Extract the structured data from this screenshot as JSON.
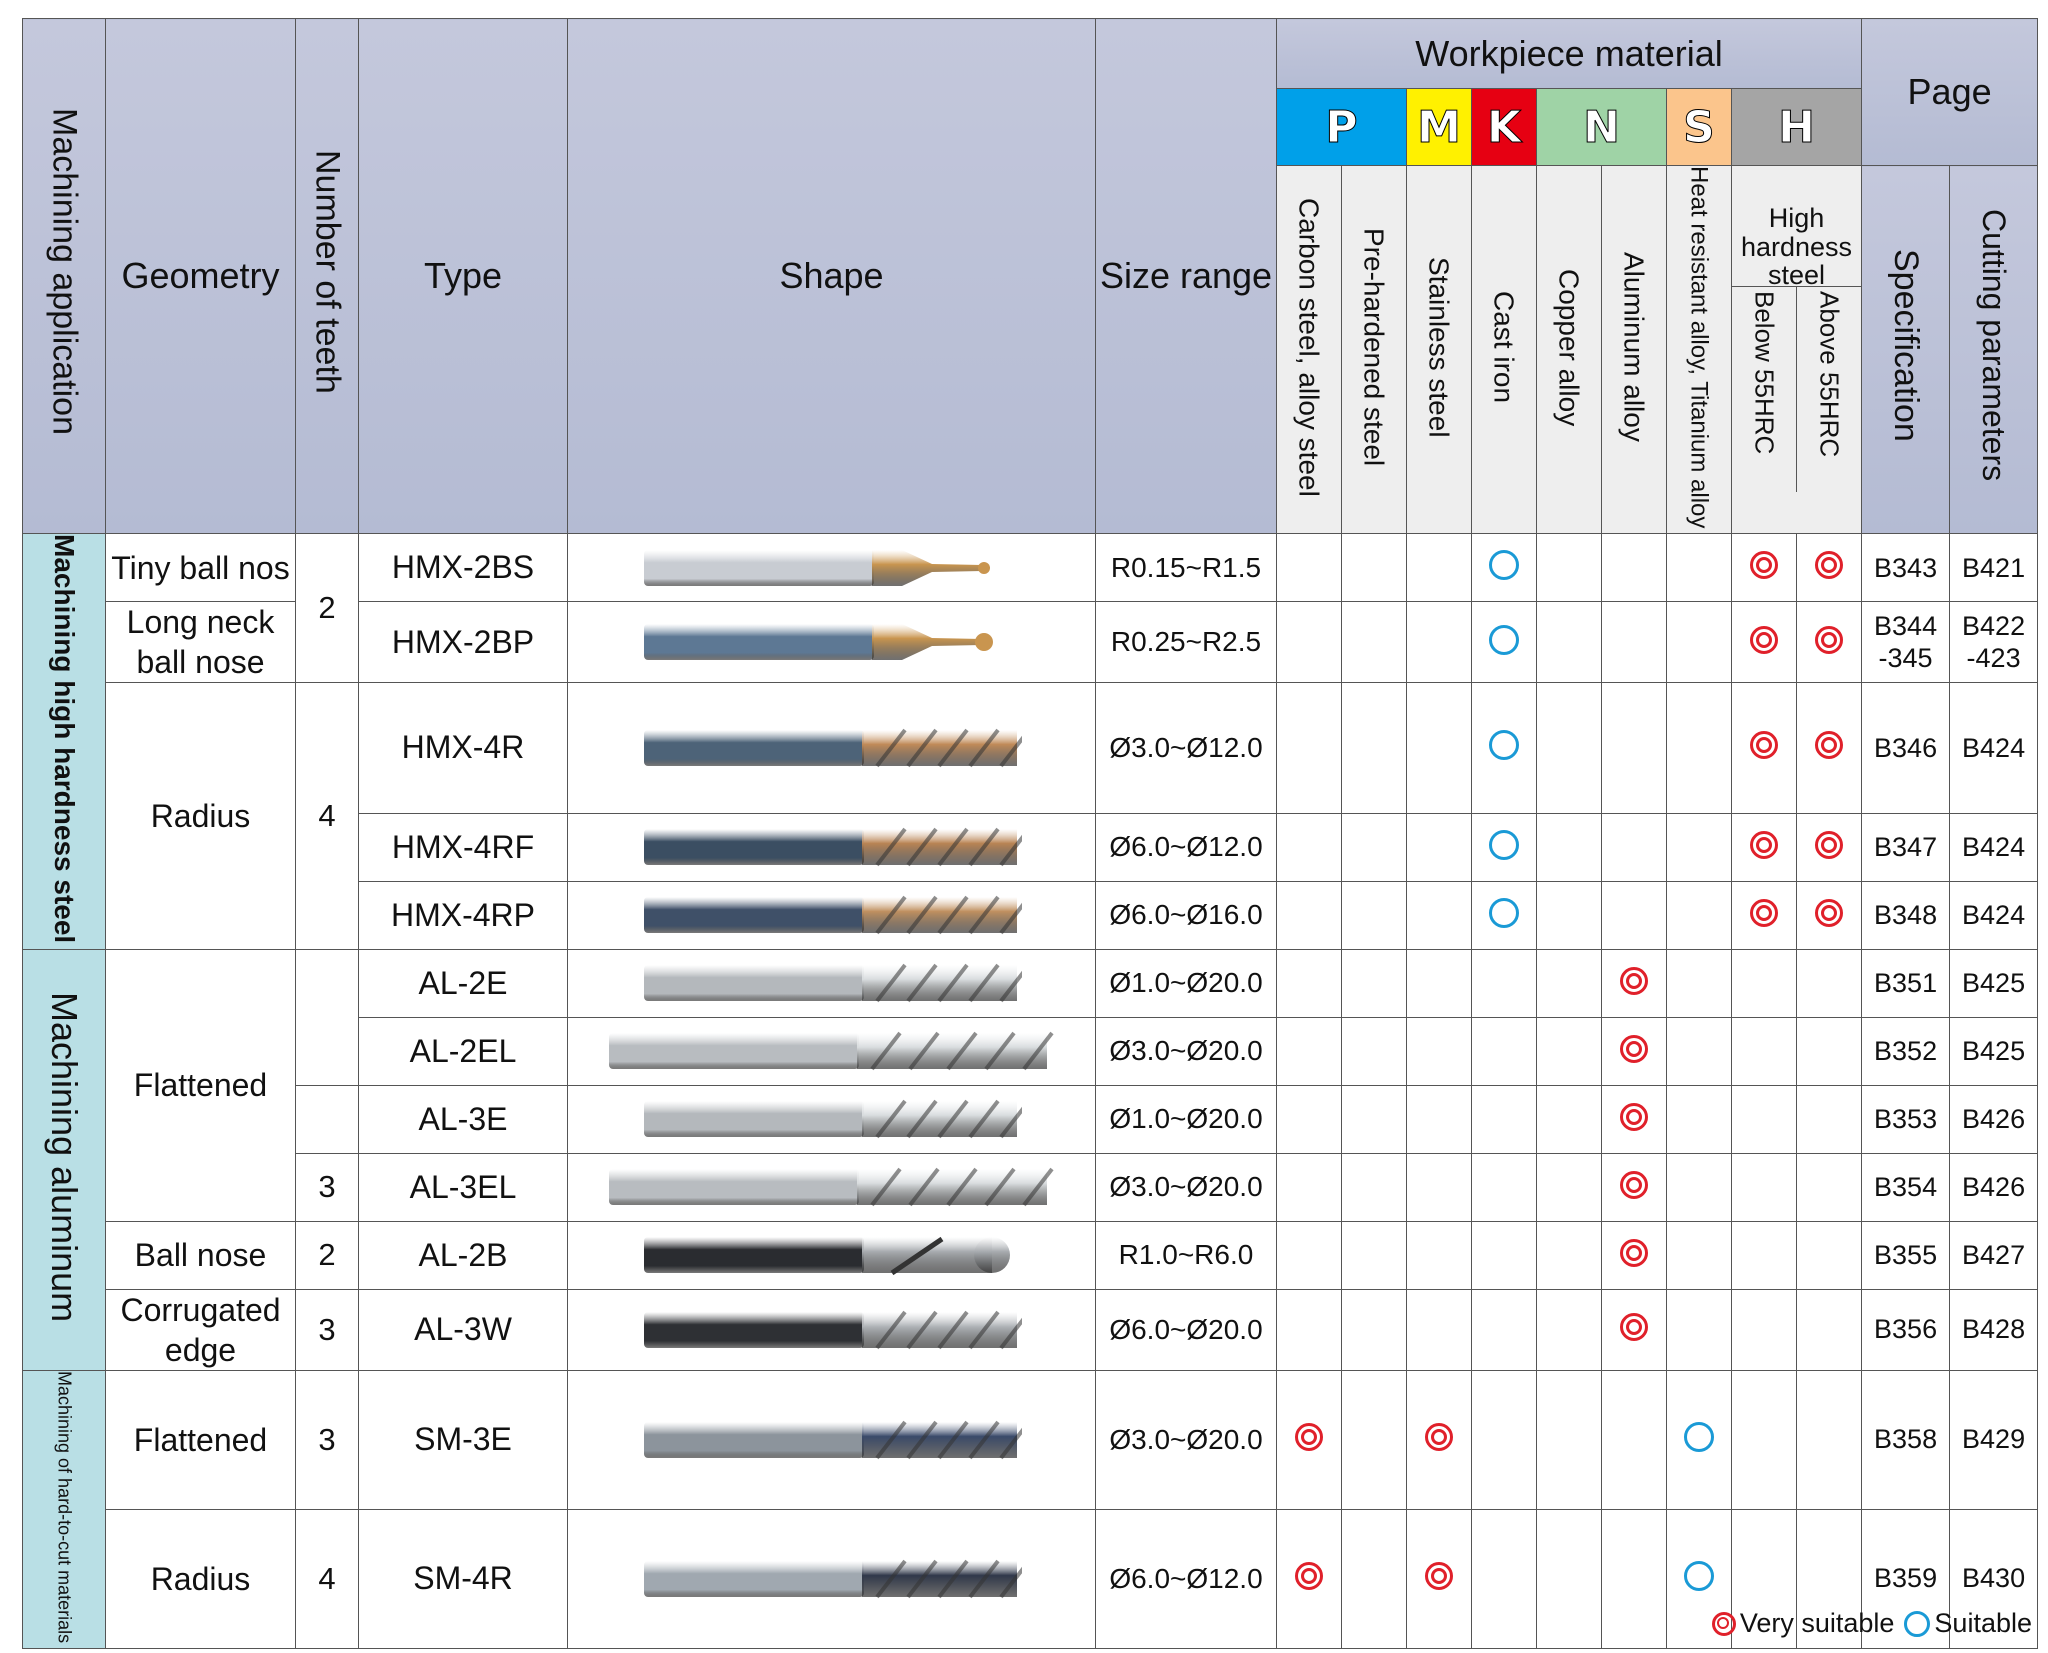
{
  "header": {
    "machining_application": "Machining application",
    "geometry": "Geometry",
    "number_of_teeth": "Number of teeth",
    "type": "Type",
    "shape": "Shape",
    "size_range": "Size range",
    "workpiece_material": "Workpiece material",
    "page": "Page",
    "iso": [
      {
        "letter": "P",
        "color": "#00a0e9"
      },
      {
        "letter": "M",
        "color": "#fff100"
      },
      {
        "letter": "K",
        "color": "#e60012"
      },
      {
        "letter": "N",
        "color": "#9fd3a6"
      },
      {
        "letter": "S",
        "color": "#fbc58c"
      },
      {
        "letter": "H",
        "color": "#a5a5a5"
      }
    ],
    "materials": {
      "carbon": "Carbon steel, alloy steel",
      "prehardened": "Pre-hardened steel",
      "stainless": "Stainless steel",
      "castiron": "Cast iron",
      "copper": "Copper alloy",
      "aluminum": "Aluminum  alloy",
      "heat": "Heat resistant alloy, Titanium alloy",
      "high_hardness": "High hardness steel",
      "below55": "Below 55HRC",
      "above55": "Above 55HRC"
    },
    "specification": "Specification",
    "cutting_parameters": "Cutting parameters"
  },
  "applications": {
    "high_hardness": "Machining high hardness steel",
    "aluminum": "Machining aluminum",
    "hard_to_cut": "Machining of hard-to-cut materials"
  },
  "geometry": {
    "tiny_ball": "Tiny ball nos",
    "long_neck": "Long neck ball nose",
    "radius": "Radius",
    "flattened": "Flattened",
    "ball_nose": "Ball nose",
    "corrugated": "Corrugated edge",
    "flattened2": "Flattened",
    "radius2": "Radius"
  },
  "teeth": {
    "t2a": "2",
    "t4a": "4",
    "t3a": "3",
    "t2b": "2",
    "t3b": "3",
    "t3c": "3",
    "t4b": "4"
  },
  "rows": [
    {
      "type": "HMX-2BS",
      "size": "R0.15~R1.5",
      "spec": "B343",
      "cut": "B421"
    },
    {
      "type": "HMX-2BP",
      "size": "R0.25~R2.5",
      "spec": "B344 -345",
      "cut": "B422 -423"
    },
    {
      "type": "HMX-4R",
      "size": "Ø3.0~Ø12.0",
      "spec": "B346",
      "cut": "B424"
    },
    {
      "type": "HMX-4RF",
      "size": "Ø6.0~Ø12.0",
      "spec": "B347",
      "cut": "B424"
    },
    {
      "type": "HMX-4RP",
      "size": "Ø6.0~Ø16.0",
      "spec": "B348",
      "cut": "B424"
    },
    {
      "type": "AL-2E",
      "size": "Ø1.0~Ø20.0",
      "spec": "B351",
      "cut": "B425"
    },
    {
      "type": "AL-2EL",
      "size": "Ø3.0~Ø20.0",
      "spec": "B352",
      "cut": "B425"
    },
    {
      "type": "AL-3E",
      "size": "Ø1.0~Ø20.0",
      "spec": "B353",
      "cut": "B426"
    },
    {
      "type": "AL-3EL",
      "size": "Ø3.0~Ø20.0",
      "spec": "B354",
      "cut": "B426"
    },
    {
      "type": "AL-2B",
      "size": "R1.0~R6.0",
      "spec": "B355",
      "cut": "B427"
    },
    {
      "type": "AL-3W",
      "size": "Ø6.0~Ø20.0",
      "spec": "B356",
      "cut": "B428"
    },
    {
      "type": "SM-3E",
      "size": "Ø3.0~Ø20.0",
      "spec": "B358",
      "cut": "B429"
    },
    {
      "type": "SM-4R",
      "size": "Ø6.0~Ø12.0",
      "spec": "B359",
      "cut": "B430"
    }
  ],
  "suitability_columns": [
    "carbon",
    "prehardened",
    "stainless",
    "castiron",
    "copper",
    "aluminum",
    "heat",
    "below55",
    "above55"
  ],
  "suitability": [
    [
      "",
      "",
      "",
      "S",
      "",
      "",
      "",
      "VS",
      "VS"
    ],
    [
      "",
      "",
      "",
      "S",
      "",
      "",
      "",
      "VS",
      "VS"
    ],
    [
      "",
      "",
      "",
      "S",
      "",
      "",
      "",
      "VS",
      "VS"
    ],
    [
      "",
      "",
      "",
      "S",
      "",
      "",
      "",
      "VS",
      "VS"
    ],
    [
      "",
      "",
      "",
      "S",
      "",
      "",
      "",
      "VS",
      "VS"
    ],
    [
      "",
      "",
      "",
      "",
      "",
      "VS",
      "",
      "",
      ""
    ],
    [
      "",
      "",
      "",
      "",
      "",
      "VS",
      "",
      "",
      ""
    ],
    [
      "",
      "",
      "",
      "",
      "",
      "VS",
      "",
      "",
      ""
    ],
    [
      "",
      "",
      "",
      "",
      "",
      "VS",
      "",
      "",
      ""
    ],
    [
      "",
      "",
      "",
      "",
      "",
      "VS",
      "",
      "",
      ""
    ],
    [
      "",
      "",
      "",
      "",
      "",
      "VS",
      "",
      "",
      ""
    ],
    [
      "VS",
      "",
      "VS",
      "",
      "",
      "",
      "S",
      "",
      ""
    ],
    [
      "VS",
      "",
      "VS",
      "",
      "",
      "",
      "S",
      "",
      ""
    ]
  ],
  "tool_images": [
    {
      "shank": "#c8ccd2",
      "coat": "#c9954f",
      "kind": "ball-tiny"
    },
    {
      "shank": "#5d7894",
      "coat": "#c9954f",
      "kind": "ball-neck"
    },
    {
      "shank": "#4d6378",
      "coat": "#c08a58",
      "kind": "flute"
    },
    {
      "shank": "#3b4e62",
      "coat": "#b98454",
      "kind": "flute"
    },
    {
      "shank": "#3f5068",
      "coat": "#c09060",
      "kind": "flute"
    },
    {
      "shank": "#b4b8bc",
      "coat": "#d8dcde",
      "kind": "flute"
    },
    {
      "shank": "#b8bcc0",
      "coat": "#d8dcde",
      "kind": "flute-long"
    },
    {
      "shank": "#b4b8bc",
      "coat": "#d8dcde",
      "kind": "flute"
    },
    {
      "shank": "#b8bcc0",
      "coat": "#d8dcde",
      "kind": "flute-long"
    },
    {
      "shank": "#2a2c30",
      "coat": "#a8acb0",
      "kind": "ball"
    },
    {
      "shank": "#2e3034",
      "coat": "#b0b4b8",
      "kind": "flute"
    },
    {
      "shank": "#8c949c",
      "coat": "#3a4a6a",
      "kind": "flute"
    },
    {
      "shank": "#a0a8b0",
      "coat": "#30384a",
      "kind": "flute"
    }
  ],
  "legend": {
    "very_suitable": "Very suitable",
    "suitable": "Suitable"
  }
}
